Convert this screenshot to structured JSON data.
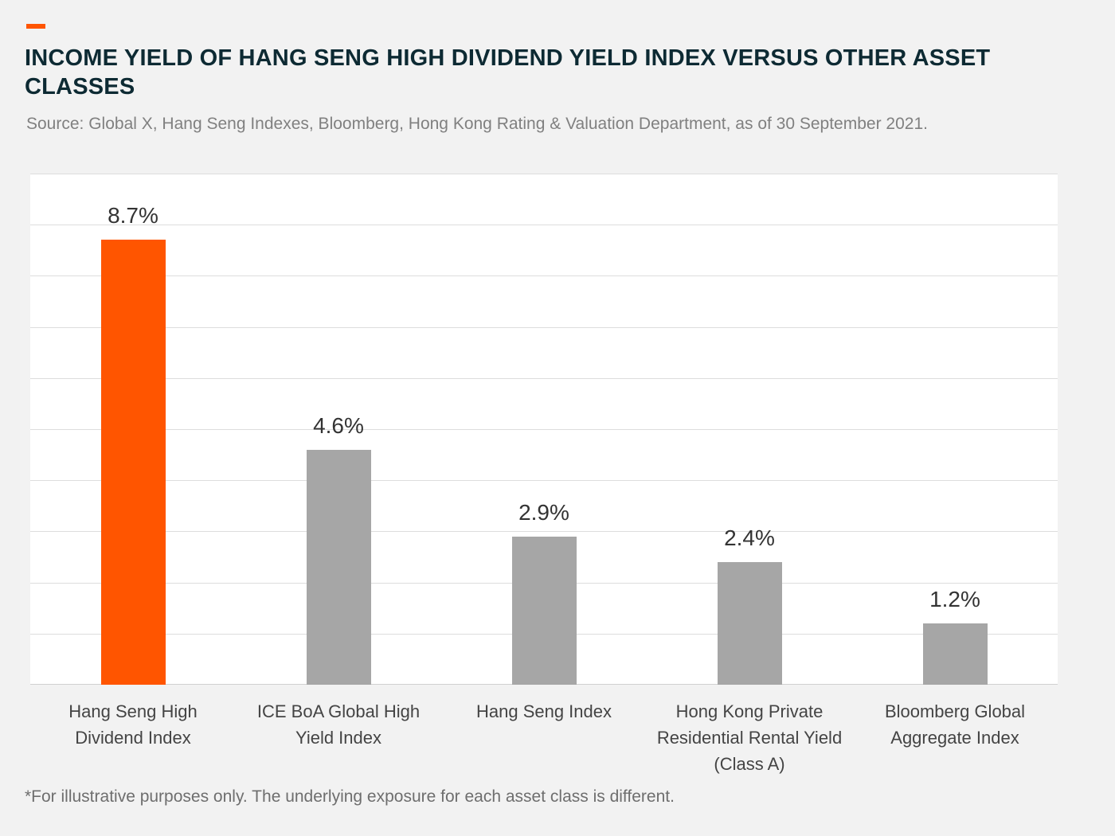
{
  "header": {
    "title": "INCOME YIELD OF HANG SENG HIGH DIVIDEND YIELD INDEX VERSUS OTHER ASSET CLASSES",
    "source": "Source: Global X, Hang Seng Indexes, Bloomberg, Hong Kong Rating & Valuation Department, as of 30 September 2021."
  },
  "footnote": "*For illustrative purposes only. The underlying exposure for each asset class is different.",
  "colors": {
    "accent": "#ff5500",
    "highlight_bar": "#ff5500",
    "other_bar": "#a6a6a6",
    "title": "#0d2a33",
    "background": "#f2f2f2",
    "plot_background": "#ffffff"
  },
  "chart_data": {
    "type": "bar",
    "title": "INCOME YIELD OF HANG SENG HIGH DIVIDEND YIELD INDEX VERSUS OTHER ASSET CLASSES",
    "categories": [
      "Hang Seng High Dividend Index",
      "ICE BoA Global High Yield Index",
      "Hang Seng Index",
      "Hong Kong Private Residential Rental Yield (Class A)",
      "Bloomberg Global Aggregate Index"
    ],
    "values": [
      8.7,
      4.6,
      2.9,
      2.4,
      1.2
    ],
    "value_labels": [
      "8.7%",
      "4.6%",
      "2.9%",
      "2.4%",
      "1.2%"
    ],
    "highlight_index": 0,
    "ylim": [
      0,
      10
    ],
    "grid_step": 1,
    "grid": true,
    "y_axis_visible": false,
    "xlabel": "",
    "ylabel": ""
  }
}
